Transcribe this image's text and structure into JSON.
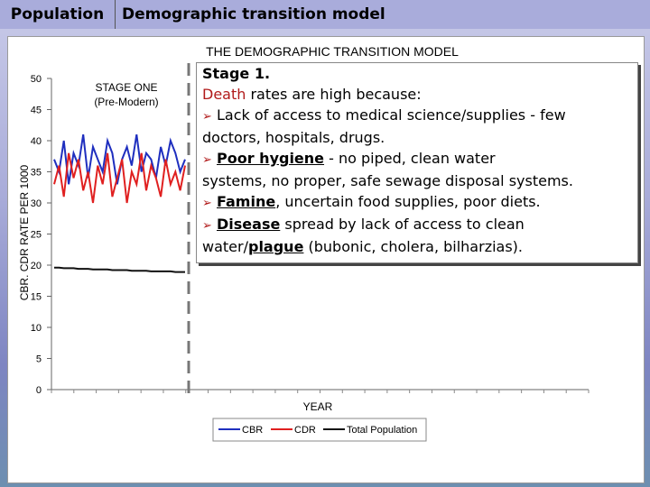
{
  "header": {
    "tab1": "Population",
    "tab2": "Demographic transition model"
  },
  "chart_data": {
    "type": "line",
    "title": "THE DEMOGRAPHIC TRANSITION MODEL",
    "xlabel": "YEAR",
    "ylabel": "CBR. CDR RATE PER 1000",
    "ylim": [
      0,
      50
    ],
    "yticks": [
      "0",
      "5",
      "10",
      "15",
      "20",
      "25",
      "30",
      "35",
      "40",
      "45",
      "50"
    ],
    "stage_label_line1": "STAGE ONE",
    "stage_label_line2": "(Pre-Modern)",
    "legend_position": "bottom-center",
    "series": [
      {
        "name": "CBR",
        "color": "#1f2fbf",
        "values": [
          37,
          35,
          40,
          33,
          38,
          36,
          41,
          34,
          39,
          37,
          35,
          40,
          38,
          33,
          37,
          39,
          36,
          41,
          35,
          38,
          37,
          34,
          39,
          36,
          40,
          38,
          35,
          37
        ]
      },
      {
        "name": "CDR",
        "color": "#e02020",
        "values": [
          33,
          36,
          31,
          38,
          34,
          37,
          32,
          35,
          30,
          36,
          33,
          38,
          31,
          34,
          37,
          30,
          35,
          33,
          38,
          32,
          36,
          34,
          31,
          37,
          33,
          35,
          32,
          36
        ]
      },
      {
        "name": "Total Population",
        "color": "#111111",
        "values": [
          19.6,
          19.6,
          19.5,
          19.5,
          19.5,
          19.4,
          19.4,
          19.4,
          19.3,
          19.3,
          19.3,
          19.3,
          19.2,
          19.2,
          19.2,
          19.2,
          19.1,
          19.1,
          19.1,
          19.1,
          19.0,
          19.0,
          19.0,
          19.0,
          19.0,
          18.9,
          18.9,
          18.9
        ]
      }
    ]
  },
  "textbox": {
    "heading": "Stage 1.",
    "death": "Death",
    "death_rest": " rates are high because:",
    "b1": "Lack of access to medical science/supplies - few",
    "b1_cont": "doctors, hospitals, drugs.",
    "b2_key": "Poor hygiene",
    "b2_rest": " - no piped, clean water",
    "b2_cont": "systems, no proper, safe sewage disposal systems.",
    "b3_key": "Famine",
    "b3_rest": ", uncertain food supplies, poor diets.",
    "b4_key": "Disease",
    "b4_rest": " spread by lack of access to clean",
    "b4_cont_a": "water/",
    "b4_cont_key": "plague",
    "b4_cont_b": " (bubonic, cholera, bilharzias).",
    "bullet": "➢"
  }
}
